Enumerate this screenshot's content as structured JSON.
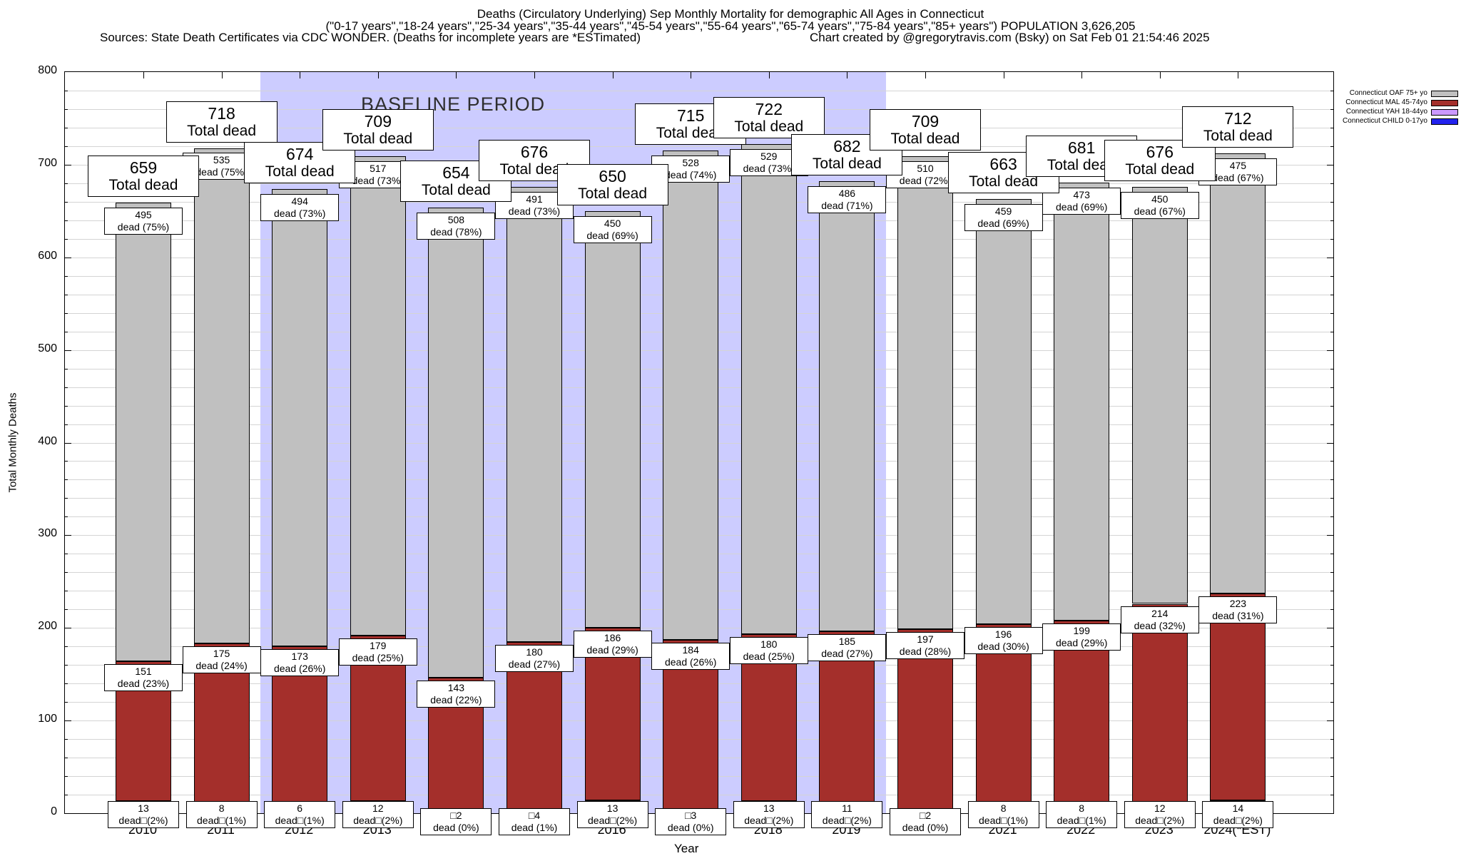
{
  "header": {
    "line1": "Deaths (Circulatory Underlying) Sep Monthly Mortality for demographic All Ages in Connecticut",
    "line2": "(\"0-17 years\",\"18-24 years\",\"25-34 years\",\"35-44 years\",\"45-54 years\",\"55-64 years\",\"65-74 years\",\"75-84 years\",\"85+ years\") POPULATION 3,626,205",
    "sources": "Sources: State Death Certificates via CDC WONDER. (Deaths for incomplete years are *ESTimated)",
    "credit": "Chart created by @gregorytravis.com (Bsky) on Sat Feb 01 21:54:46 2025"
  },
  "legend": {
    "items": [
      {
        "label": "Connecticut OAF 75+ yo",
        "color": "#c0c0c0"
      },
      {
        "label": "Connecticut MAL 45-74yo",
        "color": "#a42f2b"
      },
      {
        "label": "Connecticut YAH 18-44yo",
        "color": "#cc99ff"
      },
      {
        "label": "Connecticut CHILD 0-17yo",
        "color": "#2222ee"
      }
    ]
  },
  "chart_data": {
    "type": "bar",
    "stacked": true,
    "title": "Deaths (Circulatory Underlying) Sep Monthly Mortality for demographic All Ages in Connecticut",
    "xlabel": "Year",
    "ylabel": "Total Monthly Deaths",
    "ylim": [
      0,
      800
    ],
    "ytick_step": 100,
    "minor_grid_step": 20,
    "grid": true,
    "legend_position": "top-right-outside",
    "categories": [
      "2010",
      "2011",
      "2012",
      "2013",
      "2014",
      "2015",
      "2016",
      "2017",
      "2018",
      "2019",
      "2020",
      "2021",
      "2022",
      "2023",
      "2024(*EST)"
    ],
    "totals": [
      659,
      718,
      674,
      709,
      654,
      676,
      650,
      715,
      722,
      682,
      709,
      663,
      681,
      676,
      712
    ],
    "series": [
      {
        "name": "Connecticut CHILD 0-17yo",
        "color": "#2222ee",
        "values": [
          0,
          0,
          1,
          1,
          1,
          1,
          1,
          0,
          0,
          0,
          0,
          0,
          1,
          0,
          0
        ]
      },
      {
        "name": "Connecticut YAH 18-44yo",
        "color": "#b96ee6",
        "values": [
          13,
          8,
          6,
          12,
          2,
          4,
          13,
          3,
          13,
          11,
          2,
          8,
          8,
          12,
          14
        ]
      },
      {
        "name": "Connecticut MAL 45-74yo",
        "color": "#a42f2b",
        "values": [
          151,
          175,
          173,
          179,
          143,
          180,
          186,
          184,
          180,
          185,
          197,
          196,
          199,
          214,
          223
        ]
      },
      {
        "name": "Connecticut OAF 75+ yo",
        "color": "#c0c0c0",
        "values": [
          495,
          535,
          494,
          517,
          508,
          491,
          450,
          528,
          529,
          486,
          510,
          459,
          473,
          450,
          475
        ]
      }
    ],
    "baseline_band": {
      "label": "BASELINE PERIOD",
      "from": "2012",
      "to": "2019",
      "color": "#ccccff"
    },
    "bars": [
      {
        "year": "2010",
        "total_num": "659",
        "total_cap": "Total dead",
        "oaf_num": "495",
        "oaf_pct": "dead (75%)",
        "mal_num": "151",
        "mal_pct": "dead (23%)",
        "yah_num": "13",
        "yah_pct": "dead□(2%)",
        "yah_low": false
      },
      {
        "year": "2011",
        "total_num": "718",
        "total_cap": "Total dead",
        "oaf_num": "535",
        "oaf_pct": "dead (75%)",
        "mal_num": "175",
        "mal_pct": "dead (24%)",
        "yah_num": "8",
        "yah_pct": "dead□(1%)",
        "yah_low": false
      },
      {
        "year": "2012",
        "total_num": "674",
        "total_cap": "Total dead",
        "oaf_num": "494",
        "oaf_pct": "dead (73%)",
        "mal_num": "173",
        "mal_pct": "dead (26%)",
        "yah_num": "6",
        "yah_pct": "dead□(1%)",
        "yah_low": false
      },
      {
        "year": "2013",
        "total_num": "709",
        "total_cap": "Total dead",
        "oaf_num": "517",
        "oaf_pct": "dead (73%)",
        "mal_num": "179",
        "mal_pct": "dead (25%)",
        "yah_num": "12",
        "yah_pct": "dead□(2%)",
        "yah_low": false
      },
      {
        "year": "2014",
        "total_num": "654",
        "total_cap": "Total dead",
        "oaf_num": "508",
        "oaf_pct": "dead (78%)",
        "mal_num": "143",
        "mal_pct": "dead (22%)",
        "yah_num": "□2",
        "yah_pct": "dead (0%)",
        "yah_low": true
      },
      {
        "year": "2015",
        "total_num": "676",
        "total_cap": "Total dead",
        "oaf_num": "491",
        "oaf_pct": "dead (73%)",
        "mal_num": "180",
        "mal_pct": "dead (27%)",
        "yah_num": "□4",
        "yah_pct": "dead (1%)",
        "yah_low": true
      },
      {
        "year": "2016",
        "total_num": "650",
        "total_cap": "Total dead",
        "oaf_num": "450",
        "oaf_pct": "dead (69%)",
        "mal_num": "186",
        "mal_pct": "dead (29%)",
        "yah_num": "13",
        "yah_pct": "dead□(2%)",
        "yah_low": false
      },
      {
        "year": "2017",
        "total_num": "715",
        "total_cap": "Total dead",
        "oaf_num": "528",
        "oaf_pct": "dead (74%)",
        "mal_num": "184",
        "mal_pct": "dead (26%)",
        "yah_num": "□3",
        "yah_pct": "dead (0%)",
        "yah_low": true
      },
      {
        "year": "2018",
        "total_num": "722",
        "total_cap": "Total dead",
        "oaf_num": "529",
        "oaf_pct": "dead (73%)",
        "mal_num": "180",
        "mal_pct": "dead (25%)",
        "yah_num": "13",
        "yah_pct": "dead□(2%)",
        "yah_low": false
      },
      {
        "year": "2019",
        "total_num": "682",
        "total_cap": "Total dead",
        "oaf_num": "486",
        "oaf_pct": "dead (71%)",
        "mal_num": "185",
        "mal_pct": "dead (27%)",
        "yah_num": "11",
        "yah_pct": "dead□(2%)",
        "yah_low": false
      },
      {
        "year": "2020",
        "total_num": "709",
        "total_cap": "Total dead",
        "oaf_num": "510",
        "oaf_pct": "dead (72%)",
        "mal_num": "197",
        "mal_pct": "dead (28%)",
        "yah_num": "□2",
        "yah_pct": "dead (0%)",
        "yah_low": true
      },
      {
        "year": "2021",
        "total_num": "663",
        "total_cap": "Total dead",
        "oaf_num": "459",
        "oaf_pct": "dead (69%)",
        "mal_num": "196",
        "mal_pct": "dead (30%)",
        "yah_num": "8",
        "yah_pct": "dead□(1%)",
        "yah_low": false
      },
      {
        "year": "2022",
        "total_num": "681",
        "total_cap": "Total dead",
        "oaf_num": "473",
        "oaf_pct": "dead (69%)",
        "mal_num": "199",
        "mal_pct": "dead (29%)",
        "yah_num": "8",
        "yah_pct": "dead□(1%)",
        "yah_low": false
      },
      {
        "year": "2023",
        "total_num": "676",
        "total_cap": "Total dead",
        "oaf_num": "450",
        "oaf_pct": "dead (67%)",
        "mal_num": "214",
        "mal_pct": "dead (32%)",
        "yah_num": "12",
        "yah_pct": "dead□(2%)",
        "yah_low": false
      },
      {
        "year": "2024(*EST)",
        "total_num": "712",
        "total_cap": "Total dead",
        "oaf_num": "475",
        "oaf_pct": "dead (67%)",
        "mal_num": "223",
        "mal_pct": "dead (31%)",
        "yah_num": "14",
        "yah_pct": "dead□(2%)",
        "yah_low": false
      }
    ]
  }
}
